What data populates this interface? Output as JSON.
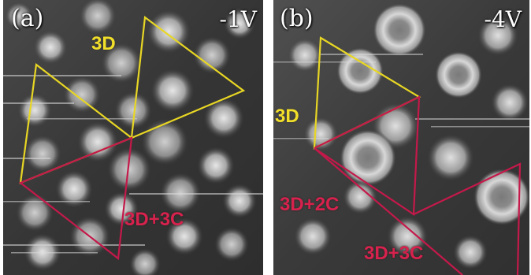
{
  "panel_a": {
    "letter": "(a)",
    "bias": "-1V",
    "label_3d": "3D",
    "label_3d3c": "3D+3C"
  },
  "panel_b": {
    "letter": "(b)",
    "bias": "-4V",
    "label_3d": "3D",
    "label_3d2c": "3D+2C",
    "label_3d3c": "3D+3C"
  },
  "colors": {
    "yellow_outline": "#e8d624",
    "red_outline": "#c4194a",
    "background": "#2a2a2a"
  }
}
